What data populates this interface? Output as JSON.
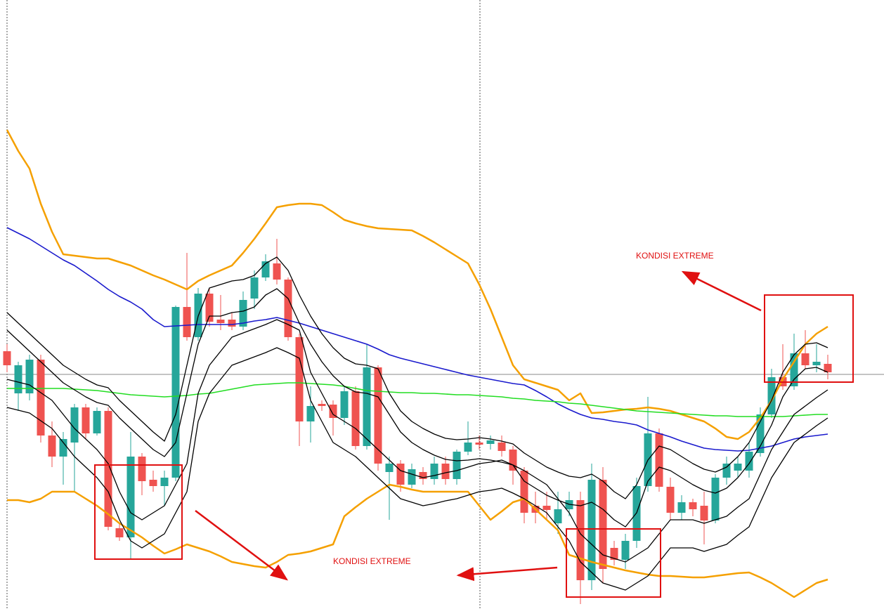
{
  "chart_data": {
    "type": "candlestick",
    "annotations": [
      "KONDISI EXTREME",
      "KONDISI EXTREME"
    ],
    "categories": [
      null,
      null,
      null,
      null,
      null,
      null,
      null,
      null,
      null,
      null,
      null,
      null,
      null,
      null,
      null,
      null,
      null,
      null,
      null,
      null,
      null,
      null,
      null,
      null,
      null,
      null,
      null,
      null,
      null,
      null,
      null,
      null,
      null,
      null,
      null,
      null,
      null,
      null,
      null,
      null,
      null,
      null,
      null,
      null,
      null,
      null,
      null,
      null,
      null,
      null,
      null,
      null,
      null,
      null,
      null,
      null,
      null,
      null,
      null,
      null,
      null,
      null,
      null,
      null,
      null,
      null,
      null,
      null,
      null,
      null,
      null,
      null,
      null,
      null
    ],
    "open": [
      367,
      307,
      307,
      355,
      247,
      217,
      237,
      287,
      250,
      282,
      115,
      102,
      217,
      184,
      175,
      187,
      430,
      387,
      449,
      412,
      412,
      402,
      442,
      472,
      492,
      469,
      387,
      267,
      292,
      291,
      272,
      310,
      232,
      344,
      195,
      207,
      177,
      195,
      185,
      207,
      185,
      224,
      237,
      235,
      237,
      227,
      197,
      147,
      147,
      122,
      142,
      155,
      41,
      184,
      87,
      70,
      97,
      175,
      250,
      174,
      137,
      152,
      147,
      126,
      187,
      197,
      197,
      222,
      277,
      330,
      317,
      364,
      347,
      349
    ],
    "high": [
      377,
      352,
      362,
      362,
      267,
      252,
      292,
      292,
      287,
      287,
      122,
      252,
      222,
      197,
      197,
      432,
      507,
      457,
      457,
      447,
      422,
      452,
      482,
      505,
      527,
      472,
      392,
      317,
      297,
      297,
      317,
      317,
      377,
      347,
      217,
      212,
      207,
      202,
      217,
      217,
      227,
      267,
      247,
      247,
      247,
      232,
      202,
      167,
      167,
      167,
      167,
      167,
      207,
      202,
      97,
      107,
      187,
      302,
      257,
      187,
      162,
      157,
      167,
      192,
      217,
      217,
      237,
      287,
      342,
      377,
      392,
      397,
      377,
      362
    ],
    "low": [
      337,
      282,
      297,
      237,
      202,
      177,
      167,
      242,
      247,
      112,
      97,
      72,
      162,
      167,
      147,
      182,
      382,
      382,
      402,
      397,
      397,
      397,
      427,
      467,
      462,
      382,
      232,
      237,
      282,
      247,
      262,
      227,
      227,
      197,
      127,
      167,
      172,
      177,
      177,
      177,
      177,
      219,
      227,
      227,
      217,
      177,
      122,
      122,
      127,
      107,
      132,
      7,
      27,
      37,
      62,
      57,
      87,
      167,
      167,
      127,
      127,
      132,
      92,
      122,
      177,
      187,
      187,
      217,
      272,
      312,
      312,
      342,
      337,
      327
    ],
    "close": [
      347,
      347,
      355,
      247,
      217,
      242,
      287,
      250,
      282,
      117,
      102,
      217,
      182,
      175,
      187,
      430,
      387,
      449,
      409,
      407,
      402,
      440,
      472,
      495,
      469,
      387,
      267,
      289,
      289,
      272,
      310,
      232,
      344,
      207,
      207,
      177,
      199,
      185,
      207,
      185,
      224,
      237,
      234,
      240,
      225,
      197,
      137,
      137,
      141,
      142,
      155,
      41,
      184,
      57,
      70,
      97,
      175,
      250,
      174,
      137,
      152,
      142,
      126,
      187,
      207,
      207,
      224,
      277,
      330,
      317,
      364,
      347,
      352,
      337
    ],
    "up_color": "#26a69a",
    "down_color": "#ef5350",
    "ylim": [
      0,
      867
    ],
    "lines": [
      {
        "color": "#f5a000",
        "values": [
          682,
          652,
          627,
          577,
          537,
          505,
          503,
          501,
          499,
          499,
          494,
          489,
          482,
          475,
          469,
          462,
          455,
          467,
          475,
          482,
          489,
          507,
          527,
          549,
          572,
          575,
          577,
          577,
          575,
          565,
          554,
          549,
          545,
          542,
          541,
          540,
          539,
          531,
          522,
          512,
          502,
          492,
          462,
          427,
          387,
          347,
          327,
          322,
          317,
          312,
          297,
          307,
          279,
          280,
          282,
          284,
          285,
          287,
          285,
          282,
          277,
          272,
          267,
          257,
          245,
          242,
          252,
          272,
          297,
          327,
          352,
          377,
          392,
          402
        ]
      },
      {
        "color": "#f5a000",
        "values": [
          155,
          155,
          152,
          157,
          167,
          167,
          167,
          157,
          147,
          135,
          122,
          112,
          102,
          90,
          79,
          85,
          92,
          87,
          82,
          75,
          67,
          64,
          61,
          59,
          67,
          77,
          79,
          82,
          87,
          92,
          132,
          145,
          157,
          167,
          177,
          174,
          170,
          167,
          167,
          167,
          167,
          167,
          147,
          127,
          139,
          152,
          157,
          142,
          127,
          112,
          77,
          72,
          67,
          63,
          59,
          55,
          52,
          49,
          47,
          47,
          46,
          45,
          45,
          47,
          49,
          51,
          52,
          45,
          37,
          27,
          17,
          27,
          37,
          42
        ]
      },
      {
        "color": "#1a1acd",
        "values": [
          543,
          535,
          527,
          517,
          507,
          497,
          489,
          478,
          467,
          455,
          445,
          437,
          427,
          412,
          402,
          403,
          404,
          405,
          405,
          405,
          405,
          407,
          410,
          412,
          415,
          411,
          407,
          402,
          397,
          392,
          387,
          382,
          377,
          370,
          362,
          357,
          353,
          349,
          345,
          341,
          337,
          333,
          330,
          327,
          324,
          321,
          319,
          311,
          302,
          292,
          284,
          277,
          272,
          270,
          267,
          265,
          262,
          255,
          250,
          245,
          239,
          234,
          229,
          227,
          226,
          225,
          226,
          229,
          232,
          237,
          242,
          245,
          247,
          249
        ]
      },
      {
        "color": "#22dd22",
        "values": [
          314,
          314,
          314,
          314,
          314,
          314,
          313,
          312,
          311,
          309,
          307,
          305,
          304,
          303,
          302,
          303,
          304,
          306,
          307,
          310,
          313,
          316,
          319,
          320,
          321,
          322,
          322,
          321,
          320,
          319,
          317,
          314,
          311,
          310,
          309,
          308,
          308,
          307,
          307,
          306,
          305,
          305,
          304,
          303,
          302,
          300,
          299,
          297,
          296,
          295,
          293,
          292,
          290,
          288,
          286,
          284,
          282,
          281,
          280,
          279,
          278,
          277,
          276,
          275,
          275,
          274,
          274,
          274,
          274,
          274,
          275,
          276,
          277,
          277
        ]
      },
      {
        "color": "#000000",
        "values": [
          422,
          407,
          392,
          377,
          362,
          347,
          337,
          327,
          319,
          315,
          297,
          282,
          267,
          252,
          239,
          277,
          347,
          417,
          457,
          462,
          467,
          469,
          475,
          492,
          501,
          482,
          447,
          417,
          392,
          372,
          357,
          349,
          347,
          342,
          307,
          282,
          267,
          257,
          249,
          243,
          241,
          242,
          244,
          242,
          239,
          235,
          222,
          212,
          202,
          195,
          189,
          187,
          192,
          182,
          167,
          157,
          177,
          212,
          232,
          227,
          217,
          207,
          199,
          195,
          202,
          217,
          237,
          267,
          297,
          337,
          362,
          377,
          379,
          372
        ]
      },
      {
        "color": "#000000",
        "values": [
          397,
          382,
          367,
          352,
          337,
          322,
          312,
          302,
          294,
          290,
          272,
          257,
          242,
          227,
          217,
          237,
          307,
          377,
          417,
          417,
          422,
          424,
          430,
          447,
          456,
          442,
          407,
          377,
          352,
          332,
          317,
          309,
          307,
          302,
          277,
          252,
          237,
          227,
          219,
          213,
          211,
          212,
          214,
          212,
          209,
          205,
          182,
          172,
          162,
          155,
          149,
          147,
          152,
          142,
          127,
          117,
          137,
          182,
          202,
          197,
          187,
          177,
          169,
          165,
          172,
          187,
          207,
          232,
          262,
          302,
          327,
          342,
          344,
          337
        ]
      },
      {
        "color": "#000000",
        "values": [
          327,
          323,
          319,
          308,
          297,
          277,
          257,
          242,
          227,
          207,
          167,
          137,
          127,
          137,
          147,
          177,
          207,
          307,
          347,
          367,
          387,
          393,
          399,
          405,
          412,
          405,
          397,
          337,
          307,
          277,
          267,
          257,
          242,
          227,
          212,
          197,
          192,
          187,
          190,
          194,
          197,
          202,
          207,
          209,
          212,
          205,
          197,
          187,
          177,
          157,
          137,
          107,
          92,
          77,
          72,
          67,
          77,
          87,
          107,
          127,
          127,
          127,
          122,
          127,
          132,
          145,
          157,
          192,
          227,
          252,
          277,
          289,
          301,
          312
        ]
      },
      {
        "color": "#000000",
        "values": [
          287,
          283,
          279,
          268,
          257,
          237,
          217,
          202,
          187,
          167,
          127,
          97,
          87,
          97,
          107,
          137,
          167,
          267,
          307,
          327,
          347,
          353,
          359,
          365,
          372,
          365,
          357,
          297,
          267,
          237,
          227,
          217,
          202,
          187,
          172,
          157,
          152,
          147,
          150,
          154,
          157,
          162,
          167,
          169,
          172,
          165,
          157,
          147,
          137,
          117,
          97,
          67,
          52,
          37,
          32,
          27,
          37,
          47,
          67,
          87,
          87,
          87,
          82,
          87,
          92,
          105,
          117,
          152,
          187,
          212,
          237,
          249,
          261,
          272
        ]
      }
    ]
  }
}
